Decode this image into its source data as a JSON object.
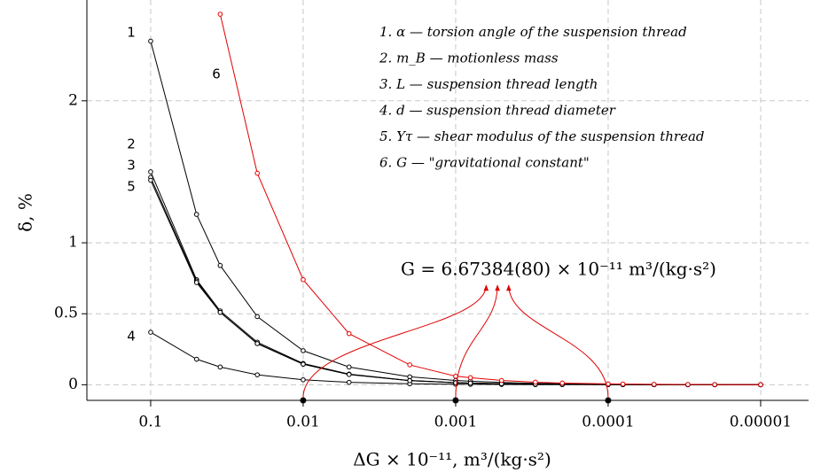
{
  "chart_data": {
    "type": "line",
    "x_label": "ΔG × 10⁻¹¹,  m³/(kg·s²)",
    "y_label": "δ, %",
    "log_x": true,
    "x_reversed": true,
    "grid": true,
    "legend": "upper right",
    "x": [
      0.1,
      0.05,
      0.035,
      0.02,
      0.01,
      0.005,
      0.002,
      0.001,
      0.0008,
      0.0005,
      0.0003,
      0.0002,
      0.0001,
      8e-05,
      5e-05,
      3e-05,
      2e-05,
      1e-05
    ],
    "xlim": [
      0.262,
      4.85e-06
    ],
    "xticks": [
      0.1,
      0.01,
      0.001,
      0.0001,
      1e-05
    ],
    "ylim": [
      -0.11,
      2.71
    ],
    "yticks": [
      0,
      0.5,
      1,
      2
    ],
    "series": [
      {
        "name": "1. α — torsion angle of the suspension thread",
        "color": "#000000",
        "values": [
          2.42,
          1.2,
          0.84,
          0.48,
          0.24,
          0.125,
          0.056,
          0.03,
          0.025,
          0.016,
          0.01,
          0.007,
          0.004,
          0.003,
          0.002,
          0.0015,
          0.001,
          0.0005
        ]
      },
      {
        "name": "2. m_B — motionless mass",
        "color": "#000000",
        "values": [
          1.5,
          0.74,
          0.52,
          0.3,
          0.15,
          0.075,
          0.03,
          0.015,
          0.012,
          0.008,
          0.005,
          0.003,
          0.0015,
          0.0012,
          0.0008,
          0.0005,
          0.0003,
          0.0002
        ]
      },
      {
        "name": "3. L — suspension thread length",
        "color": "#000000",
        "values": [
          1.46,
          0.73,
          0.51,
          0.29,
          0.145,
          0.073,
          0.029,
          0.015,
          0.012,
          0.007,
          0.004,
          0.003,
          0.0015,
          0.0012,
          0.0007,
          0.0004,
          0.0003,
          0.0001
        ]
      },
      {
        "name": "4. d — suspension thread diameter",
        "color": "#000000",
        "values": [
          0.37,
          0.18,
          0.125,
          0.07,
          0.035,
          0.017,
          0.007,
          0.0035,
          0.003,
          0.002,
          0.001,
          0.0007,
          0.0004,
          0.0003,
          0.0002,
          0.0001,
          0.0001,
          0
        ]
      },
      {
        "name": "5. Yτ — shear modulus of the suspension thread",
        "color": "#000000",
        "values": [
          1.44,
          0.72,
          0.51,
          0.29,
          0.145,
          0.072,
          0.029,
          0.014,
          0.011,
          0.007,
          0.004,
          0.003,
          0.0014,
          0.0011,
          0.0007,
          0.0004,
          0.0003,
          0.0001
        ]
      },
      {
        "name": "6. G — \"gravitational constant\"",
        "color": "#e00000",
        "values": [
          null,
          null,
          2.61,
          1.49,
          0.74,
          0.36,
          0.14,
          0.06,
          0.05,
          0.03,
          0.018,
          0.012,
          0.006,
          0.005,
          0.003,
          0.002,
          0.0012,
          0.0006
        ]
      }
    ],
    "curve_labels": [
      "1",
      "2",
      "3",
      "4",
      "5",
      "6"
    ],
    "annotation": "G = 6.67384(80) × 10⁻¹¹ m³/(kg·s²)"
  }
}
